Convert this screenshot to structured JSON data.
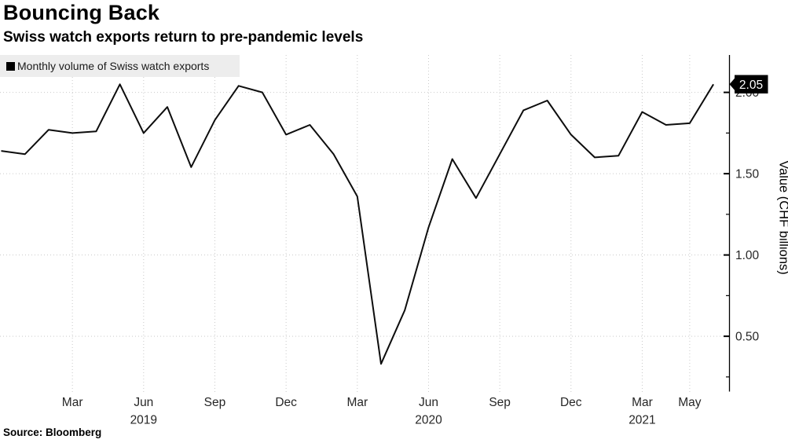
{
  "header": {
    "title": "Bouncing Back",
    "subtitle": "Swiss watch exports return to pre-pandemic levels"
  },
  "legend": {
    "label": "Monthly volume of Swiss watch exports"
  },
  "source": {
    "text": "Source: Bloomberg"
  },
  "colors": {
    "line": "#0d0d0d",
    "grid": "#c9c9c9",
    "axis": "#000000",
    "tick_label": "#262626",
    "legend_bg": "#ededed",
    "badge_bg": "#000000",
    "badge_text": "#ffffff"
  },
  "chart_data": {
    "type": "line",
    "title": "Bouncing Back",
    "subtitle": "Swiss watch exports return to pre-pandemic levels",
    "series_name": "Monthly volume of Swiss watch exports",
    "ylabel": "Value (CHF billions)",
    "ylim": [
      0.16,
      2.23
    ],
    "grid": "dotted",
    "legend_position": "top-left",
    "axis_side": "right",
    "x": [
      "Dec 2018",
      "Jan 2019",
      "Feb 2019",
      "Mar 2019",
      "Apr 2019",
      "May 2019",
      "Jun 2019",
      "Jul 2019",
      "Aug 2019",
      "Sep 2019",
      "Oct 2019",
      "Nov 2019",
      "Dec 2019",
      "Jan 2020",
      "Feb 2020",
      "Mar 2020",
      "Apr 2020",
      "May 2020",
      "Jun 2020",
      "Jul 2020",
      "Aug 2020",
      "Sep 2020",
      "Oct 2020",
      "Nov 2020",
      "Dec 2020",
      "Jan 2021",
      "Feb 2021",
      "Mar 2021",
      "Apr 2021",
      "May 2021",
      "Jun 2021"
    ],
    "values": [
      1.64,
      1.62,
      1.77,
      1.75,
      1.76,
      2.05,
      1.75,
      1.91,
      1.54,
      1.83,
      2.04,
      2.0,
      1.74,
      1.8,
      1.62,
      1.36,
      0.33,
      0.66,
      1.17,
      1.59,
      1.35,
      1.62,
      1.89,
      1.95,
      1.74,
      1.6,
      1.61,
      1.88,
      1.8,
      1.81,
      2.05
    ],
    "last_value_label": "2.05",
    "yticks": [
      {
        "v": 0.5,
        "label": "0.50"
      },
      {
        "v": 1.0,
        "label": "1.00"
      },
      {
        "v": 1.5,
        "label": "1.50"
      },
      {
        "v": 2.0,
        "label": "2.00"
      }
    ],
    "yticks_minor": [
      0.25,
      0.75,
      1.25,
      1.75
    ],
    "xticks": [
      {
        "i": 3,
        "label": "Mar"
      },
      {
        "i": 6,
        "label": "Jun",
        "year": "2019"
      },
      {
        "i": 9,
        "label": "Sep"
      },
      {
        "i": 12,
        "label": "Dec"
      },
      {
        "i": 15,
        "label": "Mar"
      },
      {
        "i": 18,
        "label": "Jun",
        "year": "2020"
      },
      {
        "i": 21,
        "label": "Sep"
      },
      {
        "i": 24,
        "label": "Dec"
      },
      {
        "i": 27,
        "label": "Mar",
        "year": "2021"
      },
      {
        "i": 29,
        "label": "May"
      }
    ]
  }
}
